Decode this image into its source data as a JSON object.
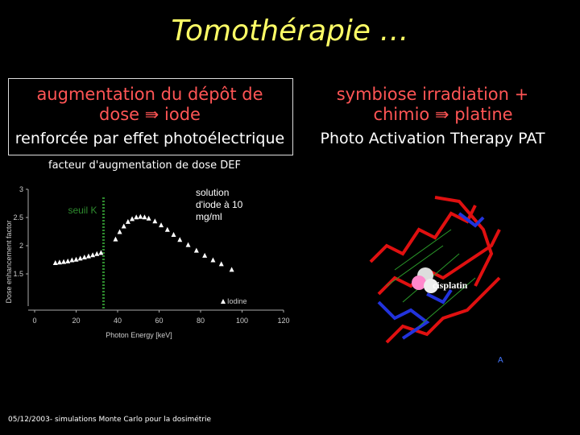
{
  "title": "Tomothérapie …",
  "left_box": {
    "lines": [
      "augmentation du dépôt de",
      "dose ⇛ iode"
    ],
    "subtitle": "renforcée par effet photoélectrique"
  },
  "right_box": {
    "lines": [
      "symbiose irradiation +",
      "chimio ⇛ platine"
    ],
    "subtitle": "Photo Activation Therapy PAT"
  },
  "chart_heading": "facteur d'augmentation de dose DEF",
  "chart_data": {
    "type": "scatter",
    "x_label": "Photon Energy [keV]",
    "y_label": "Dose enhancement factor",
    "xlim": [
      0,
      120
    ],
    "xticks": [
      0,
      20,
      40,
      60,
      80,
      100,
      120
    ],
    "ylim": [
      1,
      3
    ],
    "yticks": [
      1.5,
      2,
      2.5,
      3
    ],
    "series": [
      {
        "name": "Iodine",
        "color": "#ffffff",
        "x": [
          10,
          12,
          14,
          16,
          18,
          20,
          22,
          24,
          26,
          28,
          30,
          32,
          39,
          41,
          43,
          45,
          47,
          49,
          51,
          53,
          55,
          58,
          61,
          64,
          67,
          70,
          74,
          78,
          82,
          86,
          90,
          95
        ],
        "values": [
          1.7,
          1.71,
          1.72,
          1.73,
          1.75,
          1.76,
          1.78,
          1.8,
          1.82,
          1.84,
          1.86,
          1.88,
          2.12,
          2.25,
          2.35,
          2.43,
          2.48,
          2.51,
          2.52,
          2.51,
          2.49,
          2.44,
          2.37,
          2.29,
          2.2,
          2.11,
          2.02,
          1.92,
          1.83,
          1.75,
          1.68,
          1.58
        ]
      }
    ],
    "markers": [
      {
        "x": 33.2,
        "label": "seuil K",
        "color": "#2e8b2e"
      }
    ],
    "annotation": "solution d'iode à 10 mg/ml"
  },
  "image": {
    "label": "cisplatin",
    "corner": "A"
  },
  "footer": "05/12/2003- simulations Monte Carlo pour la dosimétrie"
}
